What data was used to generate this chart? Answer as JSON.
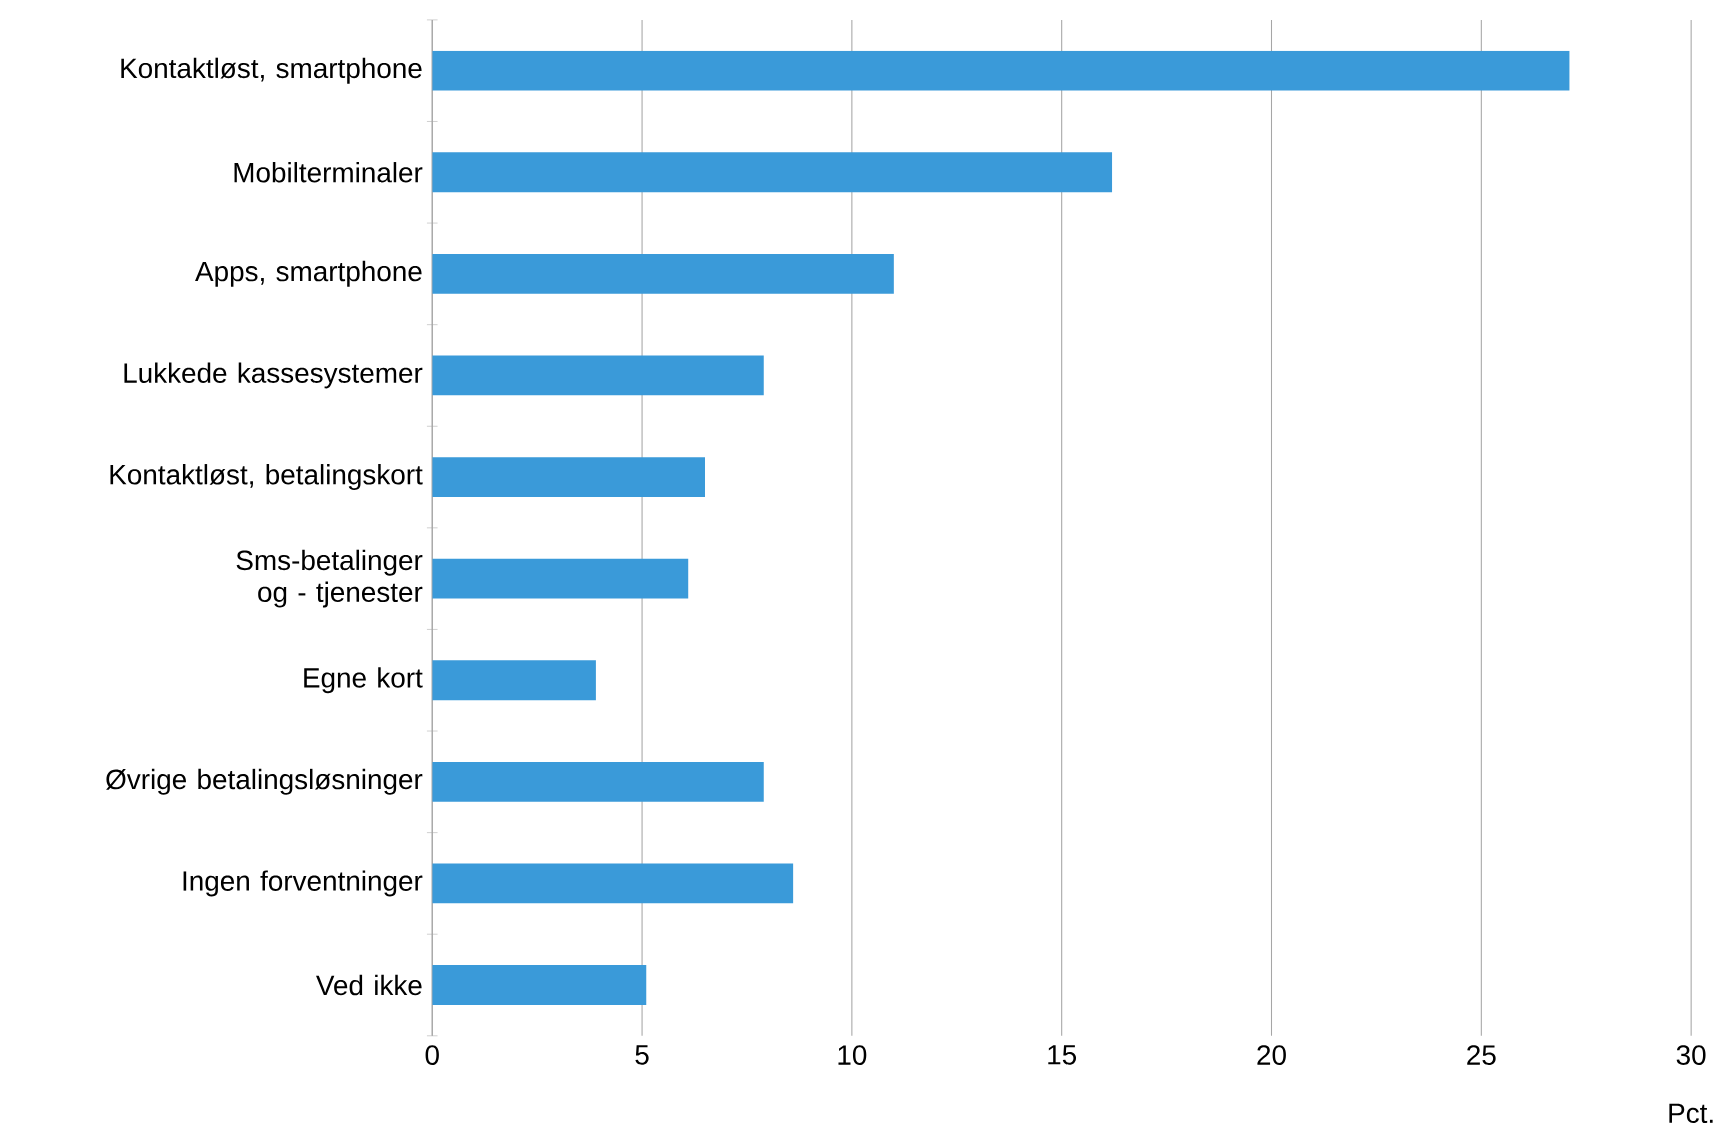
{
  "chart_data": {
    "type": "bar",
    "orientation": "horizontal",
    "categories": [
      "Kontaktløst, smartphone",
      "Mobilterminaler",
      "Apps, smartphone",
      "Lukkede kassesystemer",
      "Kontaktløst, betalingskort",
      "Sms-betalinger og - tjenester",
      "Egne kort",
      "Øvrige betalingsløsninger",
      "Ingen forventninger",
      "Ved ikke"
    ],
    "values": [
      27.1,
      16.2,
      11.0,
      7.9,
      6.5,
      6.1,
      3.9,
      7.9,
      8.6,
      5.1
    ],
    "color": "#3a9ad9",
    "xlabel": "Pct.",
    "xlim": [
      0,
      30
    ],
    "xticks": [
      0,
      5,
      10,
      15,
      20,
      25,
      30
    ],
    "grid": "x"
  }
}
